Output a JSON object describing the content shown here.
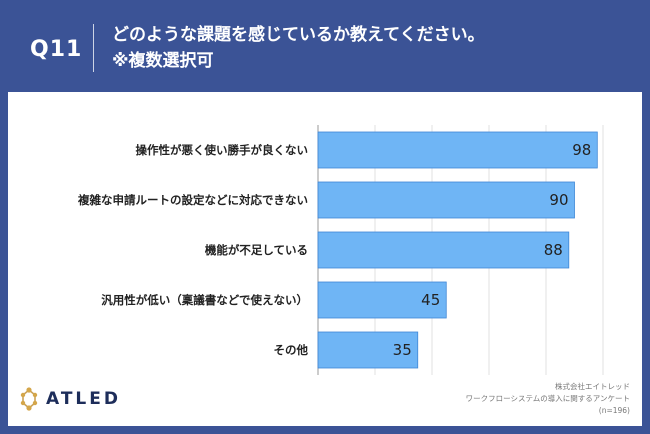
{
  "header": {
    "qnum": "Q11",
    "title_line1": "どのような課題を感じているか教えてください。",
    "title_line2": "※複数選択可"
  },
  "logo": {
    "text": "ATLED"
  },
  "footer": {
    "company": "株式会社エイトレッド",
    "survey": "ワークフローシステムの導入に関するアンケート",
    "sample": "(n=196)"
  },
  "colors": {
    "background": "#3b5396",
    "bar": "#6fb5f5",
    "bar_stroke": "#3f87d6"
  },
  "chart_data": {
    "type": "bar",
    "orientation": "horizontal",
    "categories": [
      "操作性が悪く使い勝手が良くない",
      "複雑な申請ルートの設定などに対応できない",
      "機能が不足している",
      "汎用性が低い（稟議書などで使えない）",
      "その他"
    ],
    "values": [
      98,
      90,
      88,
      45,
      35
    ],
    "xlim": [
      0,
      100
    ],
    "grid": true,
    "legend": "none"
  }
}
